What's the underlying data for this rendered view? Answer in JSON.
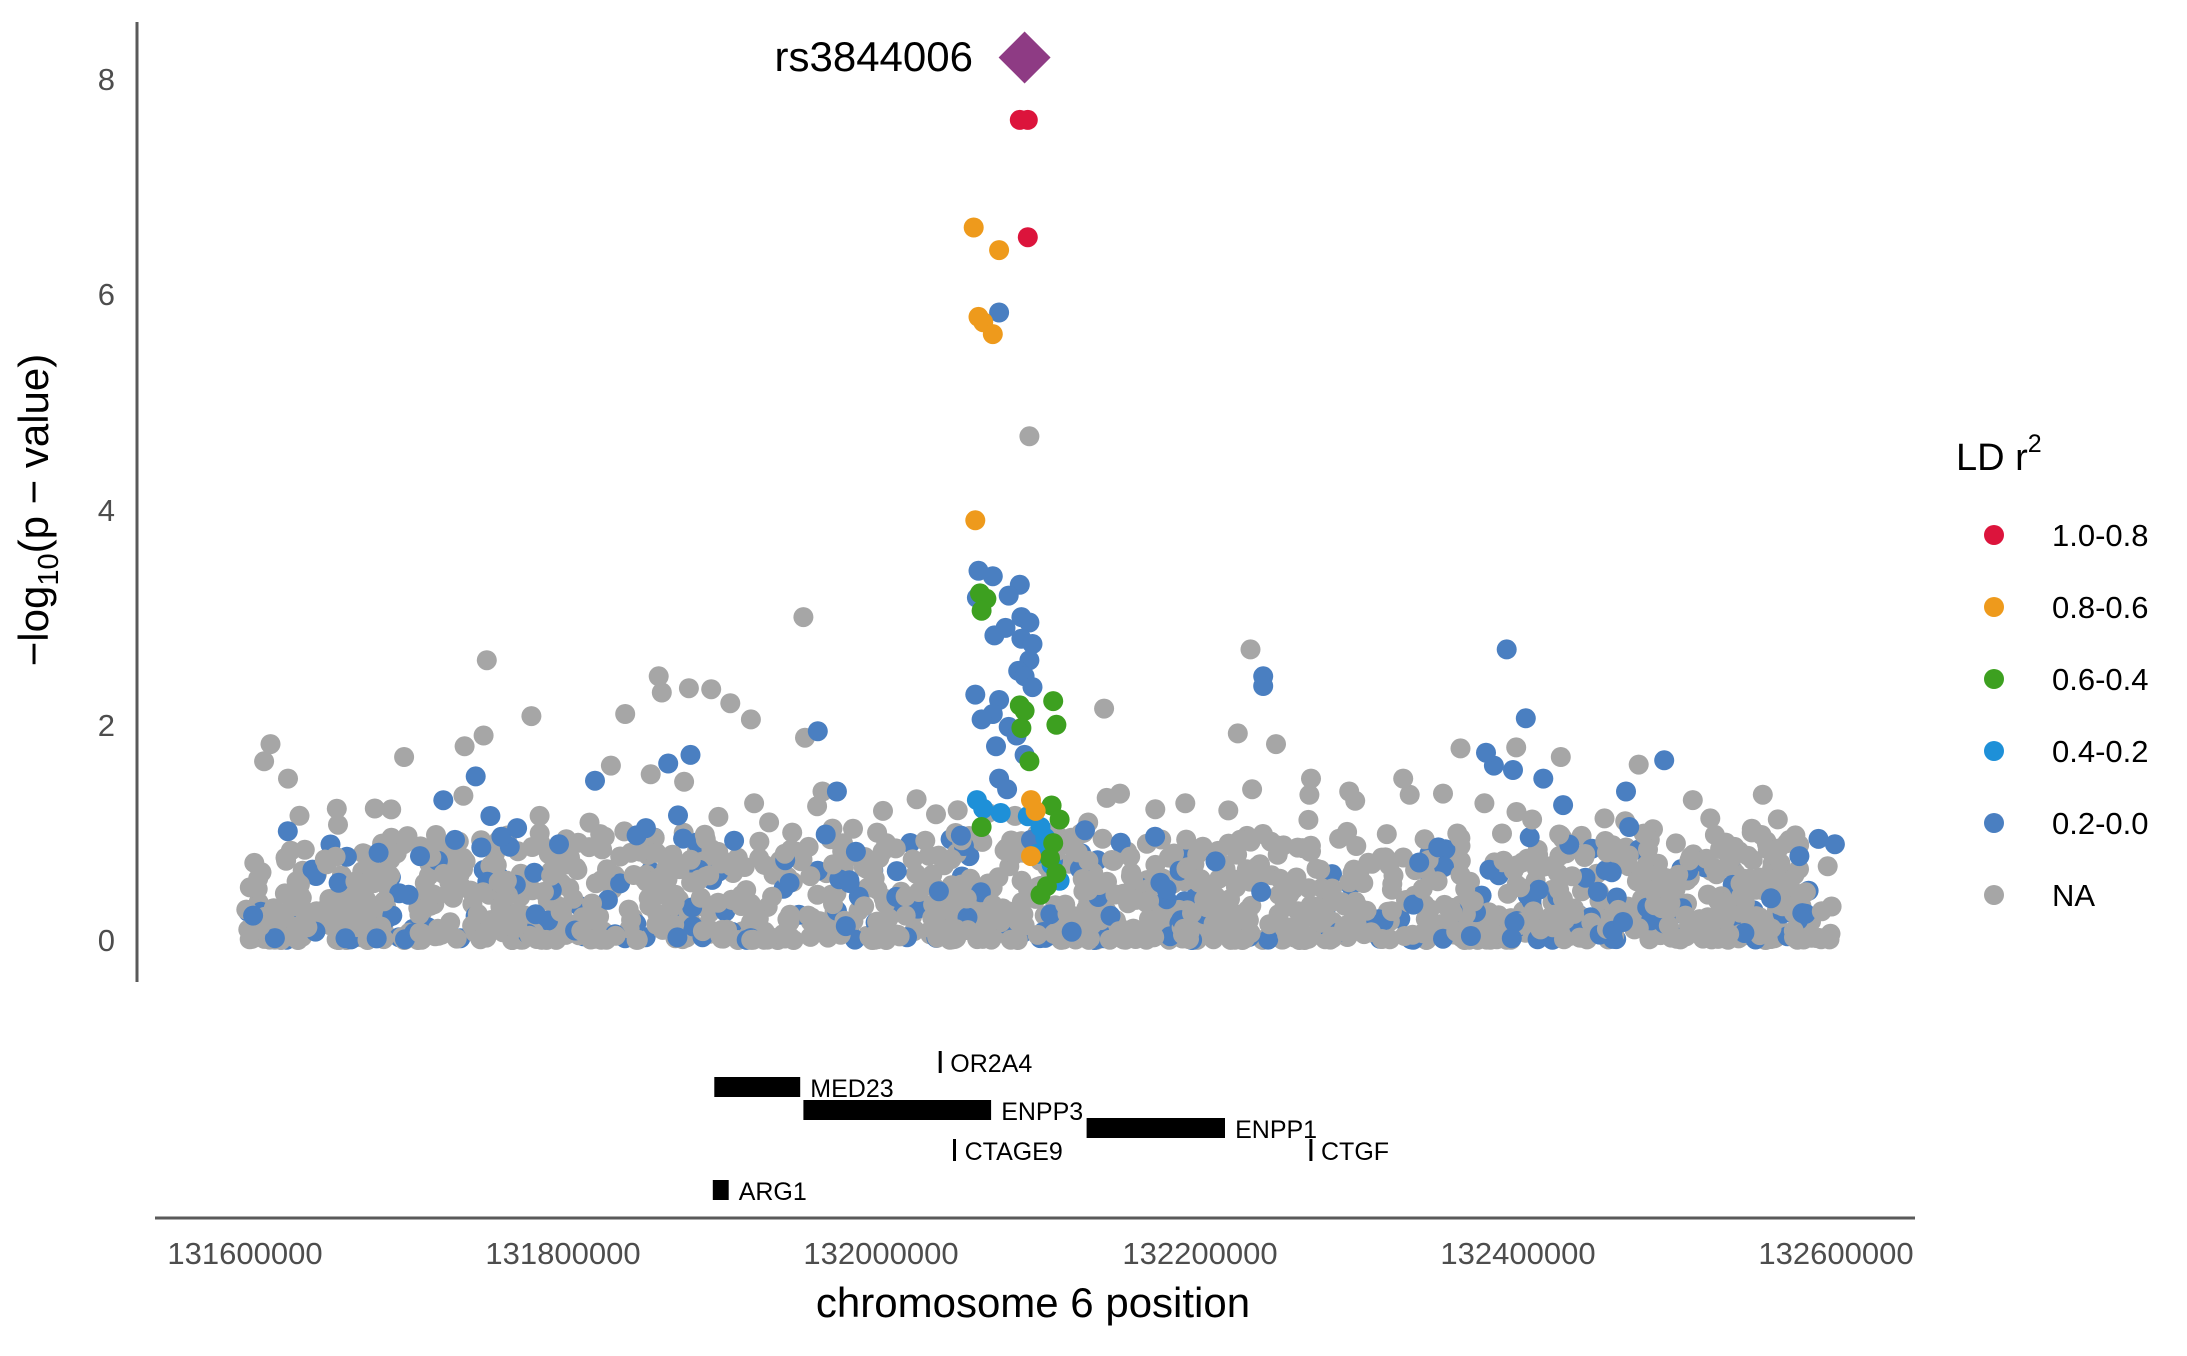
{
  "chart_data": {
    "type": "scatter",
    "xlabel": "chromosome 6 position",
    "ylabel": "-log10(p - value)",
    "xlim": [
      131570000,
      132610000
    ],
    "ylim": [
      -0.4,
      8.5
    ],
    "x_ticks": [
      131600000,
      131800000,
      132000000,
      132200000,
      132400000,
      132600000
    ],
    "x_tick_labels": [
      "131600000",
      "131800000",
      "132000000",
      "132200000",
      "132400000",
      "132600000"
    ],
    "y_ticks": [
      0,
      2,
      4,
      6,
      8
    ],
    "y_tick_labels": [
      "0",
      "2",
      "4",
      "6",
      "8"
    ],
    "grid": false,
    "lead_snp": {
      "label": "rs3844006",
      "x": 132090000,
      "y": 8.2,
      "color": "#8E3B84"
    },
    "legend": {
      "title": "LD r",
      "title_superscript": "2",
      "position": "right",
      "entries": [
        {
          "label": "1.0-0.8",
          "color": "#DC143C"
        },
        {
          "label": "0.8-0.6",
          "color": "#EE9A1C"
        },
        {
          "label": "0.6-0.4",
          "color": "#3DA020"
        },
        {
          "label": "0.4-0.2",
          "color": "#1E90D8"
        },
        {
          "label": "0.2-0.0",
          "color": "#4A7FC1"
        },
        {
          "label": "NA",
          "color": "#A6A6A6"
        }
      ]
    },
    "series": [
      {
        "group": "1.0-0.8",
        "points": [
          [
            132087000,
            7.62
          ],
          [
            132092000,
            7.62
          ],
          [
            132092000,
            6.53
          ]
        ]
      },
      {
        "group": "0.8-0.6",
        "points": [
          [
            132058000,
            6.62
          ],
          [
            132074000,
            6.41
          ],
          [
            132061000,
            5.79
          ],
          [
            132064000,
            5.74
          ],
          [
            132070000,
            5.63
          ],
          [
            132059000,
            3.9
          ],
          [
            132094000,
            1.3
          ],
          [
            132097000,
            1.2
          ],
          [
            132094000,
            0.78
          ]
        ]
      },
      {
        "group": "0.6-0.4",
        "points": [
          [
            132062000,
            3.22
          ],
          [
            132066000,
            3.17
          ],
          [
            132063000,
            3.06
          ],
          [
            132087000,
            2.18
          ],
          [
            132090000,
            2.13
          ],
          [
            132108000,
            2.22
          ],
          [
            132110000,
            2.0
          ],
          [
            132088000,
            1.97
          ],
          [
            132093000,
            1.66
          ],
          [
            132107000,
            1.25
          ],
          [
            132112000,
            1.12
          ],
          [
            132063000,
            1.05
          ],
          [
            132108000,
            0.9
          ],
          [
            132106000,
            0.76
          ],
          [
            132110000,
            0.62
          ],
          [
            132104000,
            0.5
          ],
          [
            132100000,
            0.42
          ]
        ]
      },
      {
        "group": "0.4-0.2",
        "points": [
          [
            132060000,
            1.3
          ],
          [
            132064000,
            1.22
          ],
          [
            132075000,
            1.18
          ],
          [
            132092000,
            1.15
          ],
          [
            132100000,
            1.05
          ],
          [
            132103000,
            0.95
          ],
          [
            132098000,
            0.8
          ],
          [
            132107000,
            0.7
          ],
          [
            132112000,
            0.55
          ]
        ]
      },
      {
        "group": "0.2-0.0",
        "points": [
          [
            132074000,
            5.83
          ],
          [
            132061000,
            3.43
          ],
          [
            132070000,
            3.38
          ],
          [
            132087000,
            3.3
          ],
          [
            132080000,
            3.2
          ],
          [
            132060000,
            3.18
          ],
          [
            132088000,
            3.0
          ],
          [
            132093000,
            2.95
          ],
          [
            132078000,
            2.9
          ],
          [
            132071000,
            2.83
          ],
          [
            132088000,
            2.8
          ],
          [
            132095000,
            2.75
          ],
          [
            132093000,
            2.6
          ],
          [
            132086000,
            2.5
          ],
          [
            132090000,
            2.45
          ],
          [
            132095000,
            2.35
          ],
          [
            132059000,
            2.28
          ],
          [
            132074000,
            2.23
          ],
          [
            132070000,
            2.1
          ],
          [
            132063000,
            2.05
          ],
          [
            132080000,
            1.98
          ],
          [
            132085000,
            1.9
          ],
          [
            132072000,
            1.8
          ],
          [
            132090000,
            1.72
          ],
          [
            132074000,
            1.5
          ],
          [
            132079000,
            1.4
          ],
          [
            132393000,
            2.7
          ],
          [
            132405000,
            2.06
          ],
          [
            132240000,
            2.45
          ],
          [
            132240000,
            2.36
          ],
          [
            131880000,
            1.72
          ],
          [
            131866000,
            1.64
          ],
          [
            131960000,
            1.94
          ],
          [
            131972000,
            1.38
          ],
          [
            131745000,
            1.52
          ],
          [
            131771000,
            1.04
          ],
          [
            131820000,
            1.48
          ],
          [
            131852000,
            1.04
          ],
          [
            131965000,
            0.98
          ],
          [
            131984000,
            0.82
          ],
          [
            132050000,
            0.97
          ],
          [
            132094000,
            0.93
          ],
          [
            132128000,
            1.02
          ],
          [
            132172000,
            0.96
          ],
          [
            132385000,
            1.62
          ],
          [
            132380000,
            1.74
          ],
          [
            132397000,
            1.58
          ],
          [
            132416000,
            1.5
          ],
          [
            132468000,
            1.38
          ],
          [
            132492000,
            1.67
          ],
          [
            132470000,
            1.05
          ],
          [
            132577000,
            0.78
          ],
          [
            131684000,
            0.81
          ],
          [
            131710000,
            0.78
          ],
          [
            131732000,
            0.93
          ],
          [
            132210000,
            0.73
          ],
          [
            132338000,
            0.72
          ],
          [
            132350000,
            0.86
          ]
        ]
      },
      {
        "group": "NA",
        "points": [
          [
            132093000,
            4.68
          ],
          [
            131951000,
            3.0
          ],
          [
            131752000,
            2.6
          ],
          [
            132232000,
            2.7
          ],
          [
            131879000,
            2.34
          ],
          [
            131893000,
            2.33
          ],
          [
            131860000,
            2.45
          ],
          [
            131862000,
            2.3
          ],
          [
            131839000,
            2.1
          ],
          [
            131780000,
            2.08
          ],
          [
            131750000,
            1.9
          ],
          [
            131738000,
            1.8
          ],
          [
            131616000,
            1.82
          ],
          [
            132140000,
            2.15
          ],
          [
            132224000,
            1.92
          ],
          [
            132248000,
            1.82
          ],
          [
            132364000,
            1.78
          ],
          [
            132399000,
            1.79
          ],
          [
            132427000,
            1.7
          ],
          [
            132476000,
            1.63
          ],
          [
            132510000,
            1.3
          ],
          [
            132554000,
            1.35
          ],
          [
            131905000,
            2.2
          ],
          [
            131918000,
            2.05
          ],
          [
            131952000,
            1.88
          ],
          [
            131612000,
            1.66
          ],
          [
            131627000,
            1.5
          ],
          [
            131700000,
            1.7
          ],
          [
            131830000,
            1.62
          ],
          [
            131855000,
            1.54
          ],
          [
            131876000,
            1.47
          ],
          [
            131920000,
            1.27
          ],
          [
            131963000,
            1.38
          ],
          [
            132001000,
            1.2
          ],
          [
            132003000,
            0.9
          ],
          [
            132150000,
            1.36
          ],
          [
            132191000,
            1.27
          ],
          [
            132233000,
            1.4
          ],
          [
            132270000,
            1.5
          ],
          [
            132294000,
            1.38
          ],
          [
            132328000,
            1.5
          ],
          [
            132353000,
            1.36
          ],
          [
            132379000,
            1.27
          ],
          [
            132409000,
            1.12
          ],
          [
            132426000,
            0.98
          ],
          [
            132455000,
            0.92
          ],
          [
            132521000,
            1.13
          ],
          [
            132547000,
            1.0
          ],
          [
            132564000,
            0.85
          ]
        ]
      }
    ],
    "background_band": {
      "group": "NA",
      "x_range": [
        131600000,
        132600000
      ],
      "y_range": [
        0,
        1.0
      ]
    },
    "genes": [
      {
        "name": "ARG1",
        "start": 131894000,
        "end": 131904000,
        "row": 4
      },
      {
        "name": "MED23",
        "start": 131895000,
        "end": 131949000,
        "row": 1
      },
      {
        "name": "OR2A4",
        "start": 132036000,
        "end": 132037000,
        "row": 0
      },
      {
        "name": "ENPP3",
        "start": 131951000,
        "end": 132069000,
        "row": 2
      },
      {
        "name": "CTAGE9",
        "start": 132045000,
        "end": 132046000,
        "row": 3
      },
      {
        "name": "ENPP1",
        "start": 132129000,
        "end": 132216000,
        "row": 2.5
      },
      {
        "name": "CTGF",
        "start": 132269000,
        "end": 132270000,
        "row": 3
      }
    ]
  }
}
